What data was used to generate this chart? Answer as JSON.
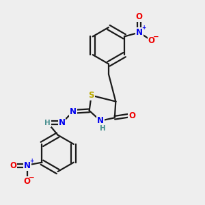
{
  "bg_color": "#eeeeee",
  "bond_color": "#1a1a1a",
  "bond_width": 1.6,
  "dbo": 0.12,
  "atom_colors": {
    "C": "#1a1a1a",
    "N": "#0000ee",
    "O": "#ee0000",
    "S": "#bbaa00",
    "H": "#4a9090"
  },
  "font_size": 8.5,
  "fig_size": [
    3.0,
    3.0
  ],
  "dpi": 100
}
